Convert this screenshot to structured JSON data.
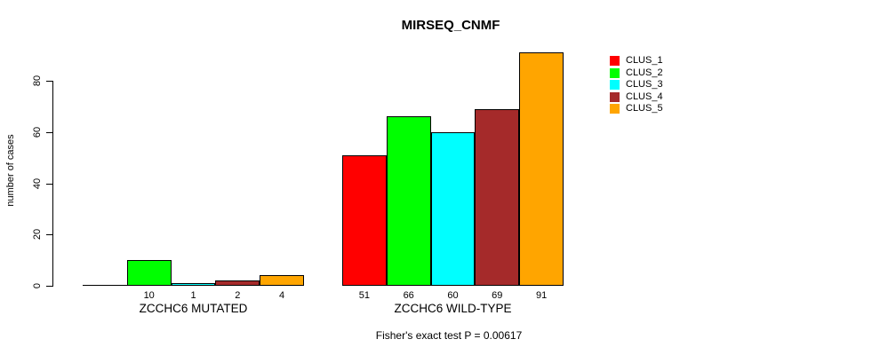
{
  "chart_data": {
    "type": "bar",
    "title": "MIRSEQ_CNMF",
    "ylabel": "number of cases",
    "xlabel": "",
    "ylim": [
      0,
      80
    ],
    "yticks": [
      0,
      20,
      40,
      60,
      80
    ],
    "grid": false,
    "legend_position": "right",
    "categories": [
      "ZCCHC6 MUTATED",
      "ZCCHC6 WILD-TYPE"
    ],
    "series": [
      {
        "name": "CLUS_1",
        "color": "#FF0000",
        "values": [
          0,
          51
        ]
      },
      {
        "name": "CLUS_2",
        "color": "#00FF00",
        "values": [
          10,
          66
        ]
      },
      {
        "name": "CLUS_3",
        "color": "#00FFFF",
        "values": [
          1,
          60
        ]
      },
      {
        "name": "CLUS_4",
        "color": "#A52A2A",
        "values": [
          2,
          69
        ]
      },
      {
        "name": "CLUS_5",
        "color": "#FFA500",
        "values": [
          4,
          91
        ]
      }
    ],
    "bar_value_labels": [
      [
        "",
        "10",
        "1",
        "2",
        "4"
      ],
      [
        "51",
        "66",
        "60",
        "69",
        "91"
      ]
    ],
    "note": "Fisher's exact test P = 0.00617",
    "bar_border_color": "#000000"
  }
}
